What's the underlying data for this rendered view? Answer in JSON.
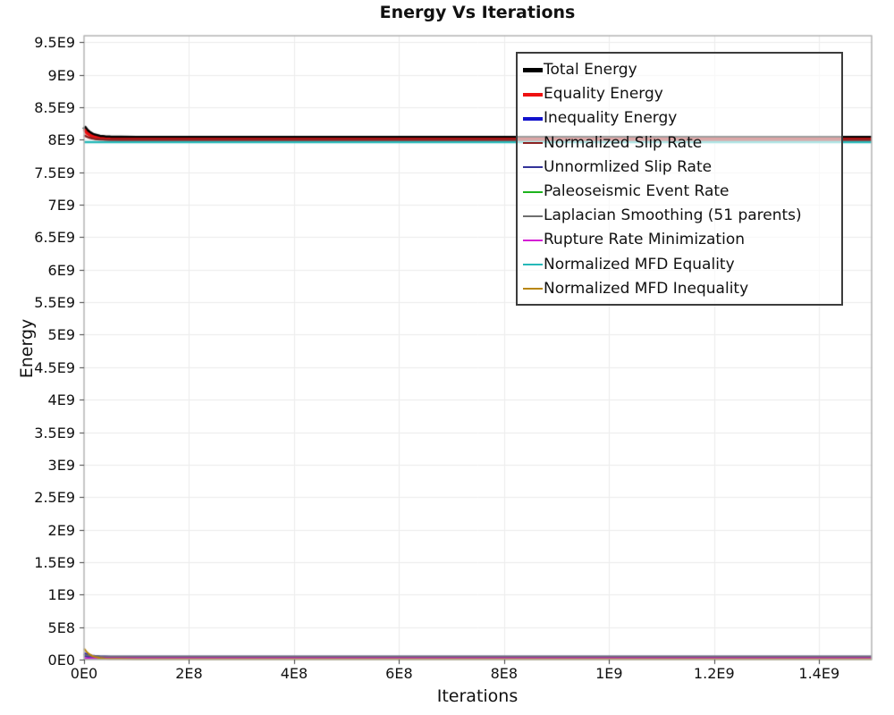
{
  "chart_data": {
    "type": "line",
    "title": "Energy Vs Iterations",
    "xlabel": "Iterations",
    "ylabel": "Energy",
    "xlim": [
      0,
      1500000000.0
    ],
    "ylim": [
      0,
      9600000000.0
    ],
    "grid": true,
    "legend_position": "top-right-inside",
    "x_ticks": {
      "values": [
        0,
        200000000.0,
        400000000.0,
        600000000.0,
        800000000.0,
        1000000000.0,
        1200000000.0,
        1400000000.0
      ],
      "labels": [
        "0E0",
        "2E8",
        "4E8",
        "6E8",
        "8E8",
        "1E9",
        "1.2E9",
        "1.4E9"
      ]
    },
    "y_ticks": {
      "values": [
        0,
        500000000.0,
        1000000000.0,
        1500000000.0,
        2000000000.0,
        2500000000.0,
        3000000000.0,
        3500000000.0,
        4000000000.0,
        4500000000.0,
        5000000000.0,
        5500000000.0,
        6000000000.0,
        6500000000.0,
        7000000000.0,
        7500000000.0,
        8000000000.0,
        8500000000.0,
        9000000000.0,
        9500000000.0
      ],
      "labels": [
        "0E0",
        "5E8",
        "1E9",
        "1.5E9",
        "2E9",
        "2.5E9",
        "3E9",
        "3.5E9",
        "4E9",
        "4.5E9",
        "5E9",
        "5.5E9",
        "6E9",
        "6.5E9",
        "7E9",
        "7.5E9",
        "8E9",
        "8.5E9",
        "9E9",
        "9.5E9"
      ]
    },
    "x": [
      0,
      5000000.0,
      10000000.0,
      15000000.0,
      20000000.0,
      30000000.0,
      40000000.0,
      50000000.0,
      70000000.0,
      100000000.0,
      150000000.0,
      200000000.0,
      300000000.0,
      500000000.0,
      700000000.0,
      1000000000.0,
      1200000000.0,
      1500000000.0
    ],
    "series": [
      {
        "name": "Total Energy",
        "color": "#000000",
        "width": 4.5,
        "y": [
          8200000000.0,
          8146000000.0,
          8109000000.0,
          8084000000.0,
          8067000000.0,
          8047000000.0,
          8038000000.0,
          8034000000.0,
          8031000000.0,
          8030000000.0,
          8030000000.0,
          8030000000.0,
          8030000000.0,
          8030000000.0,
          8030000000.0,
          8030000000.0,
          8030000000.0,
          8030000000.0
        ]
      },
      {
        "name": "Equality Energy",
        "color": "#ee1111",
        "width": 3.5,
        "y": [
          8160000000.0,
          8105000000.0,
          8077000000.0,
          8054000000.0,
          8038000000.0,
          8020000000.0,
          8012000000.0,
          8008000000.0,
          8006000000.0,
          8005000000.0,
          8005000000.0,
          8005000000.0,
          8005000000.0,
          8005000000.0,
          8005000000.0,
          8005000000.0,
          8005000000.0,
          8005000000.0
        ]
      },
      {
        "name": "Inequality Energy",
        "color": "#1111cc",
        "width": 3.5,
        "y": [
          90000000.0,
          72000000.0,
          60000000.0,
          52000000.0,
          47000000.0,
          40000000.0,
          38000000.0,
          36000000.0,
          35000000.0,
          35000000.0,
          35000000.0,
          35000000.0,
          35000000.0,
          35000000.0,
          35000000.0,
          35000000.0,
          35000000.0,
          35000000.0
        ]
      },
      {
        "name": "Normalized Slip Rate",
        "color": "#8b2222",
        "width": 2.5,
        "y": [
          8070000000.0,
          8047000000.0,
          8031000000.0,
          8021000000.0,
          8013000000.0,
          8005000000.0,
          8001000000.0,
          7999000000.0,
          7998000000.0,
          7998000000.0,
          7998000000.0,
          7998000000.0,
          7998000000.0,
          7998000000.0,
          7998000000.0,
          7998000000.0,
          7998000000.0,
          7998000000.0
        ]
      },
      {
        "name": "Unnormlized Slip Rate",
        "color": "#333399",
        "width": 2,
        "y": [
          50000000.0,
          43000000.0,
          38000000.0,
          34000000.0,
          32000000.0,
          29000000.0,
          28000000.0,
          27000000.0,
          27000000.0,
          27000000.0,
          27000000.0,
          27000000.0,
          27000000.0,
          27000000.0,
          27000000.0,
          27000000.0,
          27000000.0,
          27000000.0
        ]
      },
      {
        "name": "Paleoseismic Event Rate",
        "color": "#1db41d",
        "width": 2,
        "y": [
          13000000.0,
          13000000.0,
          13000000.0,
          13000000.0,
          13000000.0,
          13000000.0,
          13000000.0,
          13000000.0,
          13000000.0,
          13000000.0,
          13000000.0,
          13000000.0,
          13000000.0,
          13000000.0,
          13000000.0,
          13000000.0,
          13000000.0,
          13000000.0
        ]
      },
      {
        "name": "Laplacian Smoothing (51 parents)",
        "color": "#6e6e6e",
        "width": 2,
        "y": [
          80000000.0,
          69000000.0,
          62000000.0,
          57000000.0,
          54000000.0,
          50000000.0,
          49000000.0,
          48000000.0,
          47000000.0,
          47000000.0,
          47000000.0,
          47000000.0,
          47000000.0,
          47000000.0,
          47000000.0,
          47000000.0,
          47000000.0,
          47000000.0
        ]
      },
      {
        "name": "Rupture Rate Minimization",
        "color": "#d41ed4",
        "width": 2,
        "y": [
          21000000.0,
          21000000.0,
          21000000.0,
          21000000.0,
          21000000.0,
          21000000.0,
          21000000.0,
          21000000.0,
          21000000.0,
          21000000.0,
          21000000.0,
          21000000.0,
          21000000.0,
          21000000.0,
          21000000.0,
          21000000.0,
          21000000.0,
          21000000.0
        ]
      },
      {
        "name": "Normalized MFD Equality",
        "color": "#25b8b8",
        "width": 2.5,
        "y": [
          7965000000.0,
          7965000000.0,
          7965000000.0,
          7965000000.0,
          7965000000.0,
          7965000000.0,
          7965000000.0,
          7965000000.0,
          7965000000.0,
          7965000000.0,
          7965000000.0,
          7965000000.0,
          7965000000.0,
          7965000000.0,
          7965000000.0,
          7965000000.0,
          7965000000.0,
          7965000000.0
        ]
      },
      {
        "name": "Normalized MFD Inequality",
        "color": "#b8860b",
        "width": 2,
        "y": [
          170000000.0,
          118000000.0,
          83000000.0,
          59000000.0,
          43000000.0,
          24000000.0,
          15000000.0,
          11000000.0,
          9000000.0,
          8000000.0,
          8000000.0,
          8000000.0,
          8000000.0,
          8000000.0,
          8000000.0,
          8000000.0,
          8000000.0,
          8000000.0
        ]
      }
    ],
    "style": {
      "grid_color": "#ececec",
      "border_color": "#b4b4b4",
      "tick_color": "#444444",
      "background": "#ffffff"
    }
  }
}
